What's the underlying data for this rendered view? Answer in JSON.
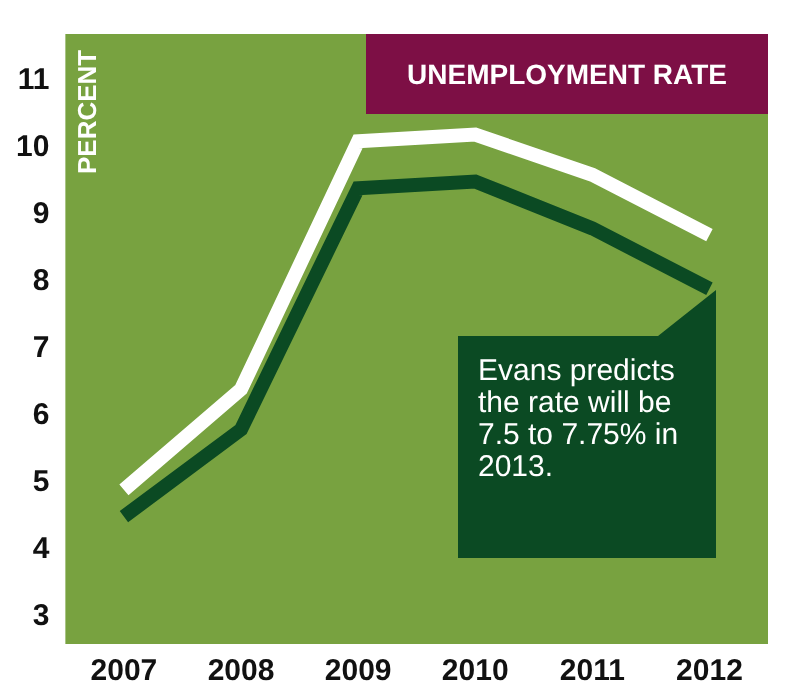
{
  "chart_data": {
    "type": "line",
    "title": "UNEMPLOYMENT RATE",
    "ylabel": "PERCENT",
    "categories": [
      "2007",
      "2008",
      "2009",
      "2010",
      "2011",
      "2012"
    ],
    "series": [
      {
        "color": "#ffffff",
        "values": [
          4.9,
          6.4,
          10.1,
          10.2,
          9.6,
          8.7
        ]
      },
      {
        "color": "#0b4a23",
        "values": [
          4.5,
          5.8,
          9.4,
          9.5,
          8.8,
          7.9
        ]
      }
    ],
    "ylim": [
      2.6,
      11.7
    ],
    "yticks": [
      3,
      4,
      5,
      6,
      7,
      8,
      9,
      10,
      11
    ],
    "grid": false,
    "legend": false,
    "marker": "none",
    "line_style": "solid",
    "annotations": [
      "Evans predicts the rate will be 7.5 to 7.75% in 2013."
    ]
  }
}
